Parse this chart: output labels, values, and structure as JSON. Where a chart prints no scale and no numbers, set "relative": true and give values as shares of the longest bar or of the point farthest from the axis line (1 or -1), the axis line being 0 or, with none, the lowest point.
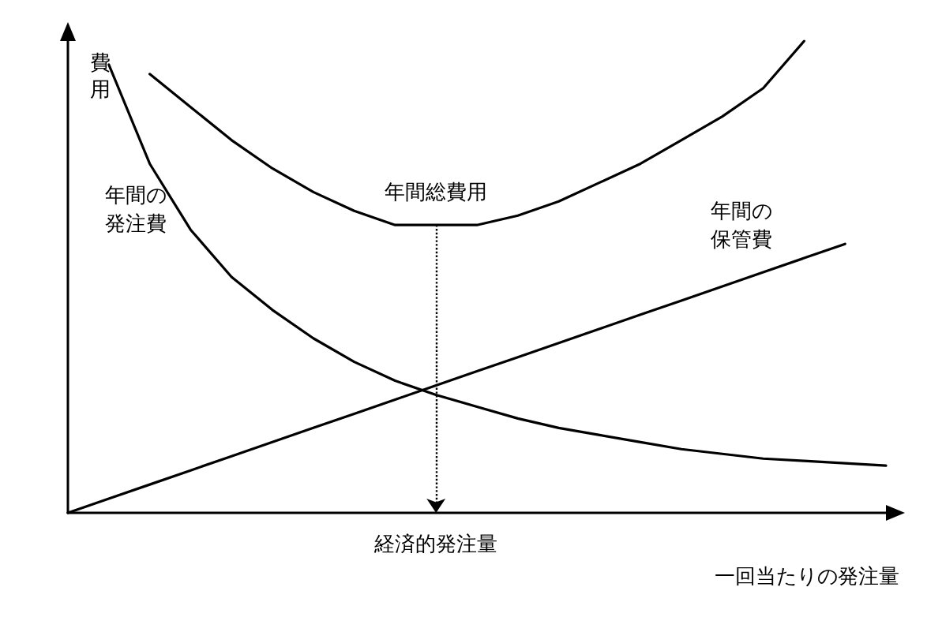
{
  "chart_data": {
    "type": "line",
    "relative": true,
    "ylabel": "費用",
    "xlabel": "一回当たりの発注量",
    "categories": [
      null,
      null,
      null,
      null,
      null,
      null,
      null,
      null,
      null,
      null,
      null,
      null,
      null,
      null,
      null,
      null,
      null,
      null,
      null,
      null,
      null
    ],
    "series": [
      {
        "name": "年間総費用",
        "color": "#000000",
        "values": [
          null,
          null,
          0.93,
          0.86,
          0.79,
          0.73,
          0.68,
          0.64,
          0.61,
          0.61,
          0.61,
          0.63,
          0.66,
          0.7,
          0.74,
          0.79,
          0.84,
          0.9,
          1,
          null,
          null
        ]
      },
      {
        "name": "年間の発注費",
        "color": "#000000",
        "values": [
          null,
          0.95,
          0.74,
          0.6,
          0.5,
          0.43,
          0.37,
          0.32,
          0.28,
          0.25,
          0.225,
          0.2,
          0.18,
          0.165,
          0.15,
          0.135,
          0.125,
          0.115,
          0.11,
          0.105,
          0.1
        ]
      },
      {
        "name": "年間の保管費",
        "color": "#000000",
        "values": [
          0,
          0.03,
          0.06,
          0.09,
          0.12,
          0.15,
          0.18,
          0.21,
          0.24,
          0.27,
          0.3,
          0.33,
          0.36,
          0.39,
          0.42,
          0.45,
          0.48,
          0.51,
          0.54,
          0.57,
          null
        ]
      }
    ],
    "annotations": [
      "経済的発注量"
    ],
    "grid": false,
    "legend": false,
    "marker": "none",
    "line_style": "solid"
  }
}
